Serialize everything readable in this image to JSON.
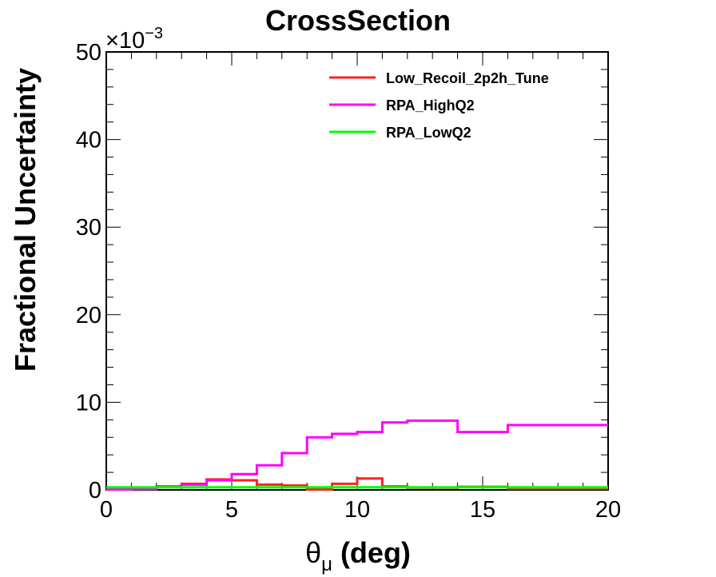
{
  "chart_data": {
    "type": "line",
    "title": "CrossSection",
    "xlabel": "θ",
    "xlabel_sub": "μ",
    "xlabel_unit": "(deg)",
    "ylabel": "Fractional Uncertainty",
    "y_multiplier": "×10",
    "y_multiplier_exp": "−3",
    "xlim": [
      0,
      20
    ],
    "ylim": [
      0,
      50
    ],
    "x_ticks": [
      "0",
      "5",
      "10",
      "15",
      "20"
    ],
    "y_ticks": [
      "0",
      "10",
      "20",
      "30",
      "40",
      "50"
    ],
    "grid": false,
    "legend_position": "top-right",
    "bin_edges": [
      0,
      1,
      2,
      3,
      4,
      5,
      6,
      7,
      8,
      9,
      10,
      11,
      12,
      14,
      16,
      20
    ],
    "series": [
      {
        "name": "Low_Recoil_2p2h_Tune",
        "color": "#ff2020",
        "values": [
          0.1,
          0.15,
          0.4,
          0.7,
          1.2,
          1.1,
          0.6,
          0.5,
          0.05,
          0.7,
          1.3,
          0.4,
          0.25,
          0.35,
          0.15
        ]
      },
      {
        "name": "RPA_HighQ2",
        "color": "#ff00ff",
        "values": [
          0.05,
          0.1,
          0.3,
          0.6,
          1.1,
          1.8,
          2.8,
          4.2,
          6.0,
          6.4,
          6.6,
          7.7,
          7.9,
          6.6,
          7.4
        ]
      },
      {
        "name": "RPA_LowQ2",
        "color": "#00ff00",
        "values": [
          0.3,
          0.3,
          0.3,
          0.3,
          0.3,
          0.3,
          0.3,
          0.3,
          0.3,
          0.3,
          0.3,
          0.3,
          0.3,
          0.3,
          0.3
        ]
      }
    ]
  }
}
